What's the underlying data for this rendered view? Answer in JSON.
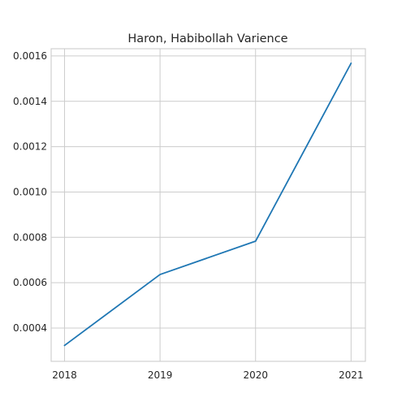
{
  "chart_data": {
    "type": "line",
    "title": "Haron, Habibollah Varience",
    "xlabel": "",
    "ylabel": "",
    "x": [
      "2018",
      "2019",
      "2020",
      "2021"
    ],
    "series": [
      {
        "values": [
          0.000323,
          0.000636,
          0.000783,
          0.001568
        ]
      }
    ],
    "xlim": [
      2017.86,
      2021.15
    ],
    "ylim": [
      0.000253,
      0.001632
    ],
    "yticks": [
      "0.0004",
      "0.0006",
      "0.0008",
      "0.0010",
      "0.0012",
      "0.0014",
      "0.0016"
    ],
    "grid": true,
    "legend": "none",
    "colors": {
      "line": "#1f77b4",
      "grid": "#cccccc",
      "text": "#262626",
      "background": "#ffffff"
    }
  }
}
